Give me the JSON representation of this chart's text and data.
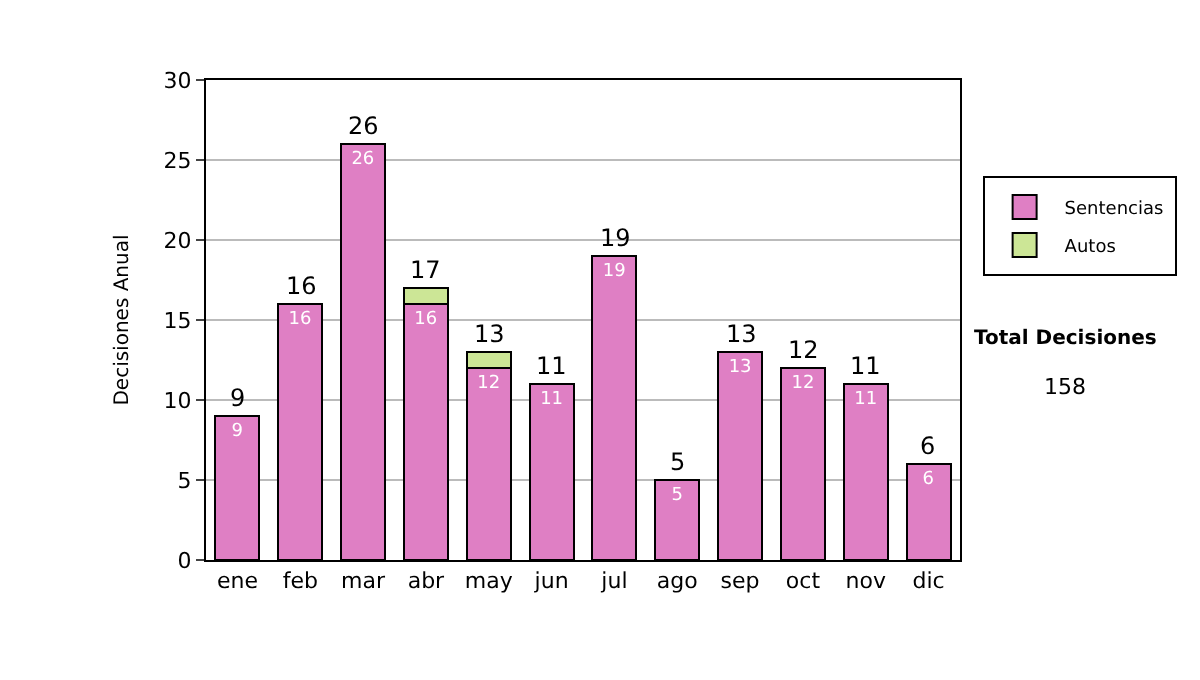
{
  "chart_data": {
    "type": "bar",
    "stacked": true,
    "ylabel": "Decisiones Anual",
    "categories": [
      "ene",
      "feb",
      "mar",
      "abr",
      "may",
      "jun",
      "jul",
      "ago",
      "sep",
      "oct",
      "nov",
      "dic"
    ],
    "series": [
      {
        "name": "Sentencias",
        "color": "#df7fc4",
        "values": [
          9,
          16,
          26,
          16,
          12,
          11,
          19,
          5,
          13,
          12,
          11,
          6
        ],
        "value_labels": [
          "9",
          "16",
          "26",
          "16",
          "12",
          "11",
          "19",
          "5",
          "13",
          "12",
          "11",
          "6"
        ]
      },
      {
        "name": "Autos",
        "color": "#cce696",
        "values": [
          null,
          null,
          null,
          1,
          1,
          null,
          null,
          null,
          null,
          null,
          null,
          null
        ]
      }
    ],
    "totals": [
      "9",
      "16",
      "26",
      "17",
      "13",
      "11",
      "19",
      "5",
      "13",
      "12",
      "11",
      "6"
    ],
    "ylim": [
      0,
      30
    ],
    "yticks": [
      0,
      5,
      10,
      15,
      20,
      25,
      30
    ],
    "grid": "y",
    "legend": "right",
    "annotations": [
      "Total Decisiones",
      "158"
    ]
  }
}
